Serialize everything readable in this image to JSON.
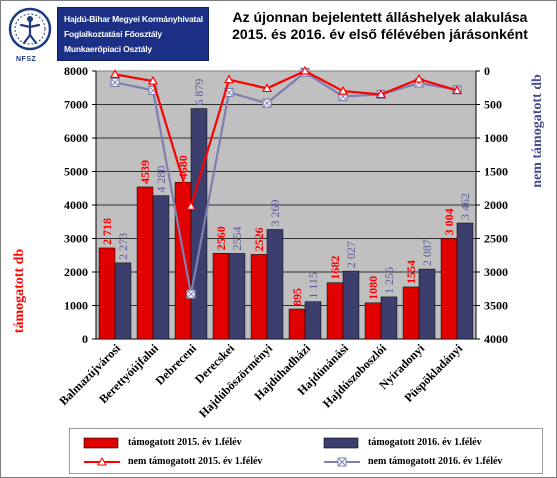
{
  "header": {
    "org_lines": [
      "Hajdú-Bihar Megyei Kormányhivatal",
      "Foglalkoztatási Főosztály",
      "Munkaerőpiaci Osztály"
    ],
    "logo_caption": "NFSZ",
    "title_line1": "Az újonnan bejelentett álláshelyek alakulása",
    "title_line2": "2015. és 2016. év első félévében járásonként"
  },
  "colors": {
    "bar2015": "#e00000",
    "bar2016": "#3c3f6e",
    "line2015": "#ff0000",
    "line2016": "#7e7fb0",
    "plot_bg": "#c0c0c0",
    "label2015": "#ff0000",
    "label2016": "#5a5a9a",
    "logo_blue": "#1b2f86"
  },
  "chart_data": {
    "type": "bar",
    "categories": [
      "Balmazújvárosi",
      "Berettyóújfalui",
      "Debreceni",
      "Derecskei",
      "Hajdúböszörményi",
      "Hajdúhadházi",
      "Hajdúnánási",
      "Hajdúszoboszlói",
      "Nyíradonyi",
      "Püspökladányi"
    ],
    "series": [
      {
        "name": "támogatott 2015. év 1.félév",
        "kind": "bar",
        "axis": "left",
        "values": [
          2718,
          4539,
          4680,
          2560,
          2526,
          895,
          1682,
          1080,
          1554,
          3004
        ]
      },
      {
        "name": "támogatott 2016. év 1.félév",
        "kind": "bar",
        "axis": "left",
        "values": [
          2273,
          4280,
          6879,
          2554,
          3269,
          1115,
          2027,
          1256,
          2087,
          3462
        ]
      },
      {
        "name": "nem támogatott 2015. év 1.félév",
        "kind": "line",
        "axis": "right",
        "values": [
          50,
          150,
          2020,
          130,
          260,
          0,
          300,
          350,
          120,
          290
        ]
      },
      {
        "name": "nem támogatott 2016. év 1.félév",
        "kind": "line",
        "axis": "right",
        "values": [
          170,
          290,
          3330,
          320,
          480,
          20,
          380,
          350,
          180,
          280
        ]
      }
    ],
    "ylabel": "támogatott db",
    "y2label": "nem támogatott db",
    "ylim": [
      0,
      8000
    ],
    "y2lim": [
      0,
      4000
    ],
    "y2_inverted": true,
    "yticks": [
      "0",
      "1000",
      "2000",
      "3000",
      "4000",
      "5000",
      "6000",
      "7000",
      "8000"
    ],
    "y2ticks": [
      "0",
      "500",
      "1000",
      "1500",
      "2000",
      "2500",
      "3000",
      "3500",
      "4000"
    ],
    "data_labels_2015": [
      "2 718",
      "4539",
      "4680",
      "2560",
      "2526",
      "895",
      "1682",
      "1080",
      "1554",
      "3 004"
    ],
    "data_labels_2016": [
      "2 273",
      "4 280",
      "6 879",
      "2554",
      "3 269",
      "1 115",
      "2 027",
      "1 256",
      "2 087",
      "3 462"
    ],
    "legend_position": "bottom",
    "grid": true
  }
}
